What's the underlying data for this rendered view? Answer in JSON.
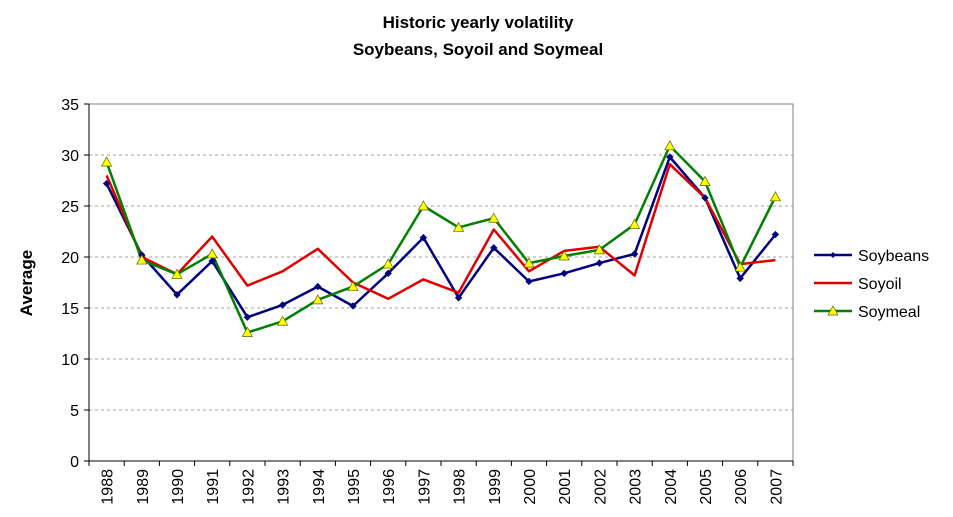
{
  "chart_data": {
    "type": "line",
    "title": "Historic yearly volatility",
    "subtitle": "Soybeans, Soyoil and Soymeal",
    "ylabel": "Average",
    "xlabel": "",
    "ylim": [
      0,
      35
    ],
    "y_ticks": [
      "0",
      "5",
      "10",
      "15",
      "20",
      "25",
      "30",
      "35"
    ],
    "grid": "horizontal dashed",
    "legend_position": "right",
    "categories": [
      "1988",
      "1989",
      "1990",
      "1991",
      "1992",
      "1993",
      "1994",
      "1995",
      "1996",
      "1997",
      "1998",
      "1999",
      "2000",
      "2001",
      "2002",
      "2003",
      "2004",
      "2005",
      "2006",
      "2007"
    ],
    "series": [
      {
        "name": "Soybeans",
        "color": "#000080",
        "marker": "diamond",
        "values": [
          27.2,
          20.2,
          16.3,
          19.6,
          14.1,
          15.3,
          17.1,
          15.2,
          18.4,
          21.9,
          16.0,
          20.9,
          17.6,
          18.4,
          19.4,
          20.3,
          29.8,
          25.8,
          17.9,
          22.2
        ]
      },
      {
        "name": "Soyoil",
        "color": "#e00000",
        "marker": "none",
        "values": [
          28.0,
          20.0,
          18.3,
          22.0,
          17.2,
          18.6,
          20.8,
          17.5,
          15.9,
          17.8,
          16.5,
          22.7,
          18.6,
          20.6,
          21.0,
          18.2,
          29.1,
          25.8,
          19.3,
          19.7
        ]
      },
      {
        "name": "Soymeal",
        "color": "#008000",
        "marker": "triangle",
        "marker_fill": "#ffff00",
        "values": [
          29.3,
          19.7,
          18.3,
          20.3,
          12.6,
          13.7,
          15.8,
          17.1,
          19.3,
          25.0,
          22.9,
          23.8,
          19.4,
          20.1,
          20.7,
          23.2,
          30.9,
          27.4,
          19.0,
          25.9
        ]
      }
    ]
  }
}
